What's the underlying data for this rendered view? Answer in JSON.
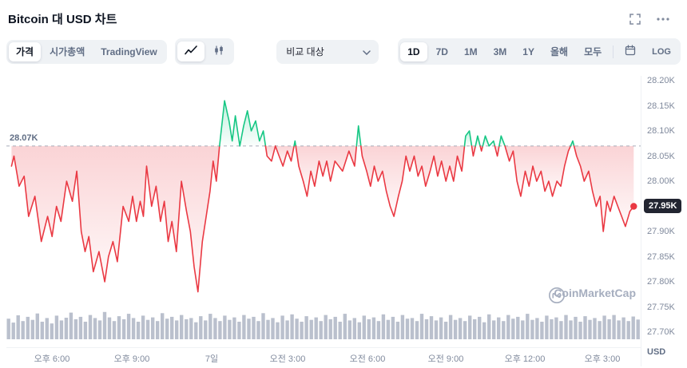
{
  "header": {
    "title": "Bitcoin 대 USD 차트"
  },
  "toolbar": {
    "tabs": [
      {
        "label": "가격",
        "name": "price",
        "active": true
      },
      {
        "label": "시가총액",
        "name": "market-cap",
        "active": false
      },
      {
        "label": "TradingView",
        "name": "tradingview",
        "active": false
      }
    ],
    "compare_label": "비교 대상",
    "ranges": [
      {
        "label": "1D",
        "name": "1d",
        "active": true
      },
      {
        "label": "7D",
        "name": "7d",
        "active": false
      },
      {
        "label": "1M",
        "name": "1m",
        "active": false
      },
      {
        "label": "3M",
        "name": "3m",
        "active": false
      },
      {
        "label": "1Y",
        "name": "1y",
        "active": false
      },
      {
        "label": "올해",
        "name": "ytd",
        "active": false
      },
      {
        "label": "모두",
        "name": "all",
        "active": false
      }
    ],
    "log_label": "LOG"
  },
  "watermark": {
    "text": "CoinMarketCap"
  },
  "chart_data": {
    "type": "line",
    "title": "Bitcoin 대 USD 차트",
    "y_unit": "USD",
    "ylim": [
      27.7,
      28.2
    ],
    "baseline": {
      "value": 28.07,
      "label": "28.07K"
    },
    "current": {
      "value": 27.95,
      "label": "27.95K"
    },
    "colors": {
      "up": "#16c784",
      "down": "#ea3943",
      "volume": "#a9b0c1",
      "baseline_line": "#9aa0ae"
    },
    "y_ticks": [
      "28.20K",
      "28.15K",
      "28.10K",
      "28.05K",
      "28.00K",
      "27.95K",
      "27.90K",
      "27.85K",
      "27.80K",
      "27.75K",
      "27.70K"
    ],
    "x_ticks": [
      {
        "label": "오후 6:00",
        "pos": 0.072
      },
      {
        "label": "오후 9:00",
        "pos": 0.198
      },
      {
        "label": "7일",
        "pos": 0.324
      },
      {
        "label": "오전 3:00",
        "pos": 0.443
      },
      {
        "label": "오전 6:00",
        "pos": 0.569
      },
      {
        "label": "오전 9:00",
        "pos": 0.693
      },
      {
        "label": "오후 12:00",
        "pos": 0.818
      },
      {
        "label": "오후 3:00",
        "pos": 0.94
      }
    ],
    "points": [
      [
        0.008,
        28.03
      ],
      [
        0.012,
        28.05
      ],
      [
        0.02,
        27.99
      ],
      [
        0.028,
        28.01
      ],
      [
        0.035,
        27.93
      ],
      [
        0.045,
        27.97
      ],
      [
        0.055,
        27.88
      ],
      [
        0.065,
        27.93
      ],
      [
        0.072,
        27.89
      ],
      [
        0.079,
        27.95
      ],
      [
        0.086,
        27.92
      ],
      [
        0.095,
        28.0
      ],
      [
        0.104,
        27.96
      ],
      [
        0.111,
        28.02
      ],
      [
        0.118,
        27.9
      ],
      [
        0.124,
        27.86
      ],
      [
        0.13,
        27.89
      ],
      [
        0.137,
        27.82
      ],
      [
        0.146,
        27.86
      ],
      [
        0.155,
        27.8
      ],
      [
        0.161,
        27.85
      ],
      [
        0.168,
        27.88
      ],
      [
        0.175,
        27.84
      ],
      [
        0.184,
        27.95
      ],
      [
        0.193,
        27.92
      ],
      [
        0.199,
        27.97
      ],
      [
        0.205,
        27.92
      ],
      [
        0.211,
        27.96
      ],
      [
        0.216,
        27.93
      ],
      [
        0.221,
        28.03
      ],
      [
        0.229,
        27.95
      ],
      [
        0.236,
        27.99
      ],
      [
        0.243,
        27.92
      ],
      [
        0.249,
        27.96
      ],
      [
        0.255,
        27.88
      ],
      [
        0.261,
        27.92
      ],
      [
        0.268,
        27.86
      ],
      [
        0.276,
        28.0
      ],
      [
        0.284,
        27.94
      ],
      [
        0.29,
        27.9
      ],
      [
        0.296,
        27.83
      ],
      [
        0.302,
        27.78
      ],
      [
        0.309,
        27.88
      ],
      [
        0.315,
        27.93
      ],
      [
        0.321,
        27.98
      ],
      [
        0.326,
        28.04
      ],
      [
        0.331,
        28.0
      ],
      [
        0.336,
        28.07
      ],
      [
        0.344,
        28.16
      ],
      [
        0.351,
        28.12
      ],
      [
        0.356,
        28.08
      ],
      [
        0.361,
        28.13
      ],
      [
        0.368,
        28.07
      ],
      [
        0.374,
        28.11
      ],
      [
        0.38,
        28.14
      ],
      [
        0.386,
        28.1
      ],
      [
        0.393,
        28.12
      ],
      [
        0.399,
        28.08
      ],
      [
        0.405,
        28.1
      ],
      [
        0.411,
        28.05
      ],
      [
        0.418,
        28.04
      ],
      [
        0.424,
        28.07
      ],
      [
        0.43,
        28.05
      ],
      [
        0.436,
        28.03
      ],
      [
        0.443,
        28.06
      ],
      [
        0.449,
        28.04
      ],
      [
        0.455,
        28.08
      ],
      [
        0.461,
        28.03
      ],
      [
        0.468,
        28.0
      ],
      [
        0.474,
        27.97
      ],
      [
        0.48,
        28.02
      ],
      [
        0.486,
        27.99
      ],
      [
        0.493,
        28.04
      ],
      [
        0.499,
        28.01
      ],
      [
        0.505,
        28.04
      ],
      [
        0.511,
        28.0
      ],
      [
        0.518,
        28.04
      ],
      [
        0.53,
        28.02
      ],
      [
        0.54,
        28.06
      ],
      [
        0.549,
        28.03
      ],
      [
        0.555,
        28.11
      ],
      [
        0.561,
        28.05
      ],
      [
        0.568,
        28.02
      ],
      [
        0.574,
        27.99
      ],
      [
        0.58,
        28.03
      ],
      [
        0.586,
        28.0
      ],
      [
        0.593,
        28.02
      ],
      [
        0.599,
        27.98
      ],
      [
        0.605,
        27.95
      ],
      [
        0.611,
        27.93
      ],
      [
        0.618,
        27.97
      ],
      [
        0.624,
        28.0
      ],
      [
        0.63,
        28.05
      ],
      [
        0.636,
        28.02
      ],
      [
        0.643,
        28.05
      ],
      [
        0.649,
        28.01
      ],
      [
        0.655,
        28.03
      ],
      [
        0.661,
        27.99
      ],
      [
        0.668,
        28.02
      ],
      [
        0.674,
        28.05
      ],
      [
        0.68,
        28.01
      ],
      [
        0.686,
        28.04
      ],
      [
        0.693,
        28.0
      ],
      [
        0.699,
        28.03
      ],
      [
        0.705,
        28.0
      ],
      [
        0.711,
        28.05
      ],
      [
        0.718,
        28.02
      ],
      [
        0.724,
        28.09
      ],
      [
        0.73,
        28.1
      ],
      [
        0.736,
        28.05
      ],
      [
        0.743,
        28.09
      ],
      [
        0.749,
        28.06
      ],
      [
        0.755,
        28.09
      ],
      [
        0.761,
        28.07
      ],
      [
        0.768,
        28.08
      ],
      [
        0.774,
        28.05
      ],
      [
        0.78,
        28.09
      ],
      [
        0.786,
        28.07
      ],
      [
        0.793,
        28.04
      ],
      [
        0.799,
        28.06
      ],
      [
        0.805,
        28.0
      ],
      [
        0.811,
        27.97
      ],
      [
        0.818,
        28.02
      ],
      [
        0.824,
        27.99
      ],
      [
        0.83,
        28.03
      ],
      [
        0.836,
        28.0
      ],
      [
        0.843,
        28.02
      ],
      [
        0.849,
        27.98
      ],
      [
        0.855,
        28.0
      ],
      [
        0.861,
        27.97
      ],
      [
        0.868,
        28.0
      ],
      [
        0.874,
        27.99
      ],
      [
        0.88,
        28.03
      ],
      [
        0.886,
        28.06
      ],
      [
        0.893,
        28.08
      ],
      [
        0.899,
        28.05
      ],
      [
        0.905,
        28.03
      ],
      [
        0.911,
        28.0
      ],
      [
        0.918,
        28.02
      ],
      [
        0.924,
        27.98
      ],
      [
        0.93,
        27.95
      ],
      [
        0.936,
        27.97
      ],
      [
        0.941,
        27.9
      ],
      [
        0.947,
        27.96
      ],
      [
        0.952,
        27.94
      ],
      [
        0.958,
        27.97
      ],
      [
        0.964,
        27.95
      ],
      [
        0.97,
        27.93
      ],
      [
        0.976,
        27.91
      ],
      [
        0.983,
        27.94
      ],
      [
        0.989,
        27.95
      ]
    ],
    "volume": [
      0.68,
      0.55,
      0.79,
      0.6,
      0.74,
      0.64,
      0.85,
      0.58,
      0.7,
      0.52,
      0.78,
      0.62,
      0.71,
      0.88,
      0.66,
      0.74,
      0.58,
      0.8,
      0.7,
      0.62,
      0.9,
      0.72,
      0.6,
      0.76,
      0.66,
      0.84,
      0.7,
      0.58,
      0.78,
      0.64,
      0.72,
      0.6,
      0.86,
      0.68,
      0.74,
      0.62,
      0.8,
      0.66,
      0.7,
      0.56,
      0.76,
      0.62,
      0.84,
      0.7,
      0.6,
      0.78,
      0.64,
      0.72,
      0.58,
      0.8,
      0.68,
      0.74,
      0.6,
      0.86,
      0.64,
      0.7,
      0.56,
      0.78,
      0.62,
      0.82,
      0.68,
      0.58,
      0.76,
      0.64,
      0.72,
      0.6,
      0.8,
      0.66,
      0.74,
      0.58,
      0.84,
      0.62,
      0.7,
      0.56,
      0.78,
      0.66,
      0.72,
      0.6,
      0.82,
      0.64,
      0.74,
      0.58,
      0.8,
      0.68,
      0.7,
      0.6,
      0.84,
      0.66,
      0.76,
      0.62,
      0.72,
      0.58,
      0.8,
      0.64,
      0.7,
      0.6,
      0.78,
      0.66,
      0.74,
      0.56,
      0.82,
      0.62,
      0.72,
      0.6,
      0.8,
      0.68,
      0.74,
      0.62,
      0.84,
      0.64,
      0.7,
      0.58,
      0.78,
      0.66,
      0.72,
      0.6,
      0.8,
      0.62,
      0.74,
      0.58,
      0.76,
      0.64,
      0.7,
      0.6,
      0.78,
      0.66,
      0.8,
      0.62,
      0.72,
      0.6,
      0.75,
      0.65
    ]
  }
}
